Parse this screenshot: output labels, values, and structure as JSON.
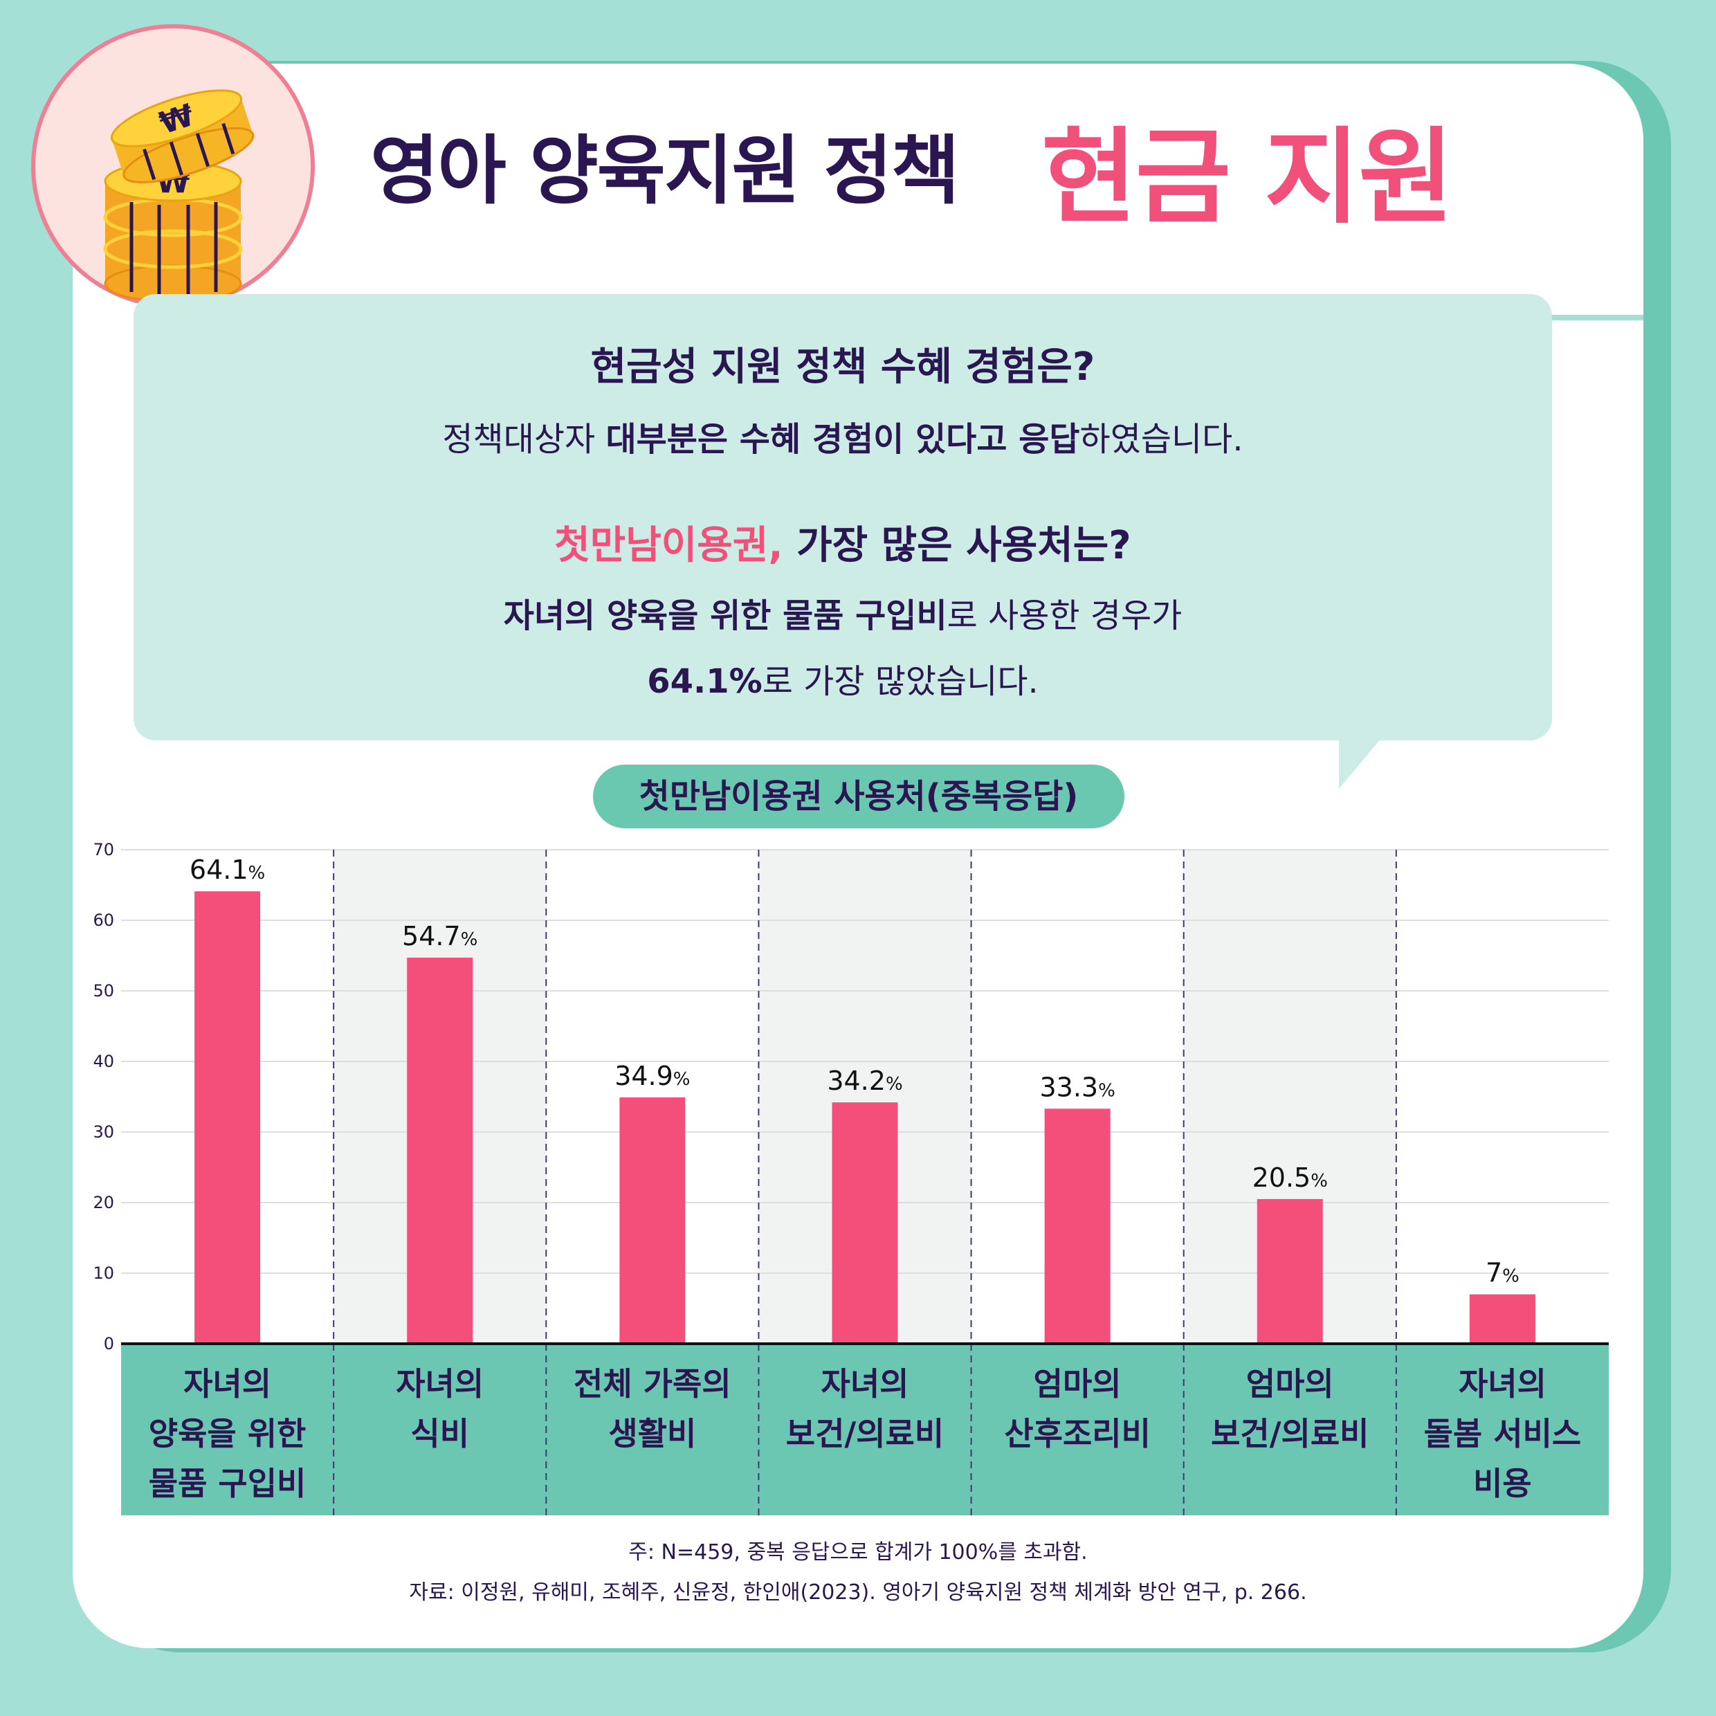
{
  "header": {
    "title": "영아 양육지원 정책",
    "accent": "현금 지원",
    "badge_symbol": "₩"
  },
  "bubble": {
    "q1": "현금성 지원 정책 수혜 경험은?",
    "a1_pre": "정책대상자 ",
    "a1_bold": "대부분은 수혜 경험이 있다고 응답",
    "a1_post": "하였습니다.",
    "q2_pink": "첫만남이용권,",
    "q2_rest": " 가장 많은 사용처는?",
    "a2_bold": "자녀의 양육을 위한 물품 구입비",
    "a2_post": "로 사용한 경우가",
    "a3_bold": "64.1%",
    "a3_post": "로 가장 많았습니다."
  },
  "chart_data": {
    "type": "bar",
    "title": "첫만남이용권 사용처(중복응답)",
    "categories": [
      [
        "자녀의",
        "양육을 위한",
        "물품 구입비"
      ],
      [
        "자녀의",
        "식비"
      ],
      [
        "전체 가족의",
        "생활비"
      ],
      [
        "자녀의",
        "보건/의료비"
      ],
      [
        "엄마의",
        "산후조리비"
      ],
      [
        "엄마의",
        "보건/의료비"
      ],
      [
        "자녀의",
        "돌봄 서비스",
        "비용"
      ]
    ],
    "values": [
      64.1,
      54.7,
      34.9,
      34.2,
      33.3,
      20.5,
      7
    ],
    "value_labels": [
      "64.1",
      "54.7",
      "34.9",
      "34.2",
      "33.3",
      "20.5",
      "7"
    ],
    "unit": "%",
    "ylim": [
      0,
      70
    ],
    "yticks": [
      0,
      10,
      20,
      30,
      40,
      50,
      60,
      70
    ],
    "grid": true,
    "colors": {
      "bar": "#f44f7a",
      "category_band": "#6cc7b2",
      "alt_column": "#f1f3f2",
      "grid": "#dedede",
      "divider": "#3c3a6e",
      "text": "#2a1650"
    }
  },
  "footnote": "주: N=459, 중복 응답으로 합계가 100%를 초과함.",
  "source": "자료: 이정원, 유해미, 조혜주, 신윤정, 한인애(2023). 영아기 양육지원 정책 체계화 방안 연구, p. 266."
}
